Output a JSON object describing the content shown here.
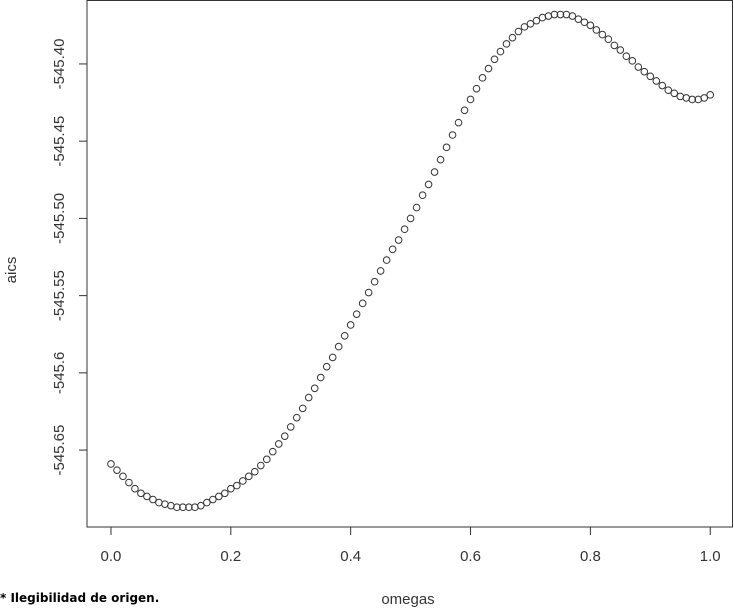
{
  "chart_data": {
    "type": "scatter",
    "x_label": "omegas",
    "y_label": "aics",
    "x": [
      0,
      0.01,
      0.02,
      0.03,
      0.04,
      0.05,
      0.06,
      0.07,
      0.08,
      0.09,
      0.1,
      0.11,
      0.12,
      0.13,
      0.14,
      0.15,
      0.16,
      0.17,
      0.18,
      0.19,
      0.2,
      0.21,
      0.22,
      0.23,
      0.24,
      0.25,
      0.26,
      0.27,
      0.28,
      0.29,
      0.3,
      0.31,
      0.32,
      0.33,
      0.34,
      0.35,
      0.36,
      0.37,
      0.38,
      0.39,
      0.4,
      0.41,
      0.42,
      0.43,
      0.44,
      0.45,
      0.46,
      0.47,
      0.48,
      0.49,
      0.5,
      0.51,
      0.52,
      0.53,
      0.54,
      0.55,
      0.56,
      0.57,
      0.58,
      0.59,
      0.6,
      0.61,
      0.62,
      0.63,
      0.64,
      0.65,
      0.66,
      0.67,
      0.68,
      0.69,
      0.7,
      0.71,
      0.72,
      0.73,
      0.74,
      0.75,
      0.76,
      0.77,
      0.78,
      0.79,
      0.8,
      0.81,
      0.82,
      0.83,
      0.84,
      0.85,
      0.86,
      0.87,
      0.88,
      0.89,
      0.9,
      0.91,
      0.92,
      0.93,
      0.94,
      0.95,
      0.96,
      0.97,
      0.98,
      0.99,
      1
    ],
    "values": [
      -545.659,
      -545.663,
      -545.667,
      -545.671,
      -545.675,
      -545.678,
      -545.68,
      -545.682,
      -545.684,
      -545.685,
      -545.686,
      -545.687,
      -545.687,
      -545.687,
      -545.687,
      -545.686,
      -545.684,
      -545.682,
      -545.68,
      -545.678,
      -545.675,
      -545.673,
      -545.67,
      -545.667,
      -545.664,
      -545.66,
      -545.656,
      -545.651,
      -545.646,
      -545.641,
      -545.635,
      -545.629,
      -545.623,
      -545.616,
      -545.61,
      -545.603,
      -545.596,
      -545.59,
      -545.583,
      -545.576,
      -545.569,
      -545.562,
      -545.555,
      -545.548,
      -545.541,
      -545.534,
      -545.527,
      -545.52,
      -545.514,
      -545.507,
      -545.5,
      -545.493,
      -545.485,
      -545.478,
      -545.47,
      -545.462,
      -545.454,
      -545.446,
      -545.438,
      -545.43,
      -545.423,
      -545.416,
      -545.409,
      -545.403,
      -545.397,
      -545.392,
      -545.387,
      -545.383,
      -545.379,
      -545.376,
      -545.374,
      -545.372,
      -545.37,
      -545.369,
      -545.368,
      -545.368,
      -545.368,
      -545.369,
      -545.371,
      -545.373,
      -545.375,
      -545.378,
      -545.381,
      -545.384,
      -545.388,
      -545.391,
      -545.395,
      -545.398,
      -545.402,
      -545.405,
      -545.408,
      -545.411,
      -545.414,
      -545.417,
      -545.419,
      -545.421,
      -545.422,
      -545.423,
      -545.423,
      -545.422,
      -545.42
    ],
    "color": "#333333",
    "xlim": [
      -0.04,
      1.038
    ],
    "ylim": [
      -545.6998,
      -545.3586
    ],
    "xticks": [
      {
        "value": 0,
        "label": "0.0"
      },
      0.2,
      0.4,
      0.6,
      0.8,
      {
        "value": 1,
        "label": "1.0"
      }
    ],
    "yticks": [
      {
        "value": -545.65,
        "label": "-545.65"
      },
      -545.6,
      -545.55,
      {
        "value": -545.5,
        "label": "-545.50"
      },
      -545.45,
      {
        "value": -545.4,
        "label": "-545.40"
      }
    ]
  },
  "footnote": "* Ilegibilidad de origen."
}
